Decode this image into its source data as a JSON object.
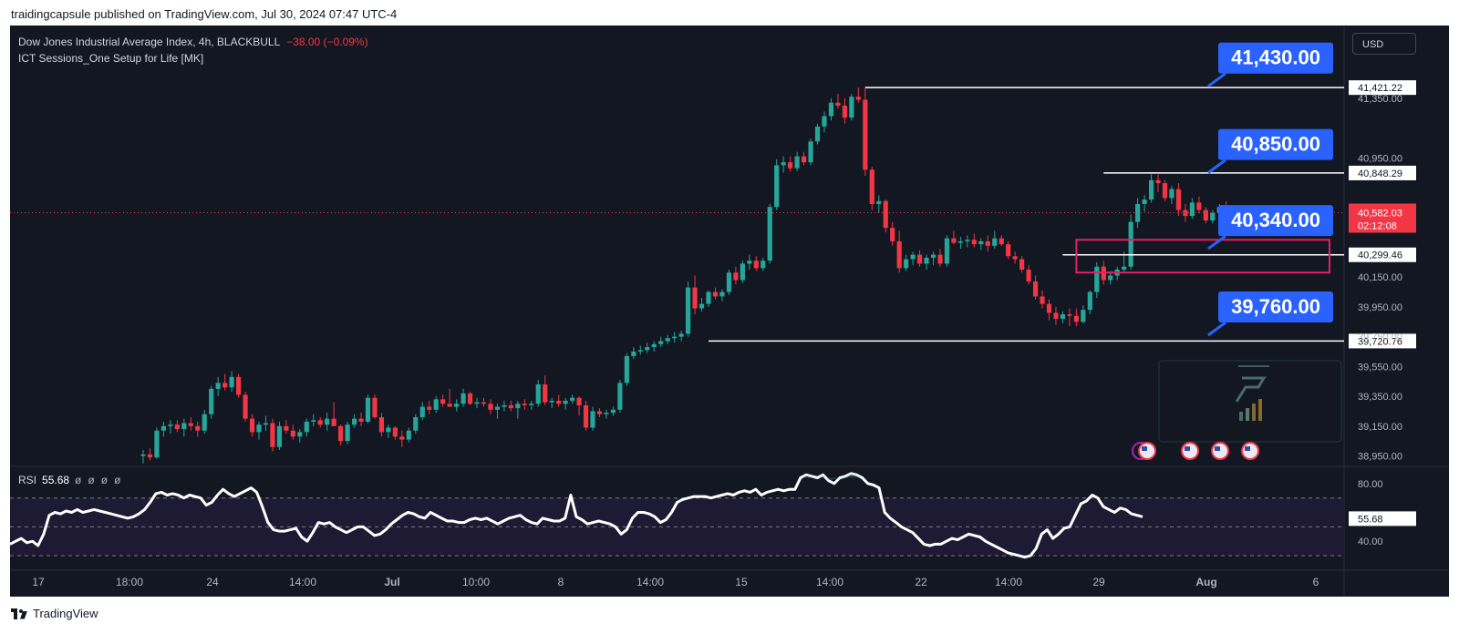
{
  "publisher": "traidingcapsule published on TradingView.com, Jul 30, 2024 07:47 UTC-4",
  "header": {
    "title": "Dow Jones Industrial Average Index, 4h, BLACKBULL",
    "change": "−38.00 (−0.09%)",
    "indicator": "ICT Sessions_One Setup for Life [MK]"
  },
  "currency_button": "USD",
  "rsi": {
    "label": "RSI",
    "value": "55.68",
    "placeholders": [
      "ø",
      "ø",
      "ø",
      "ø"
    ]
  },
  "footer_logo": "TradingView",
  "colors": {
    "up": "#26a69a",
    "down": "#f23645",
    "background": "#131722",
    "callout": "#2962ff",
    "zone": "#e91e63"
  },
  "chart_data": [
    {
      "type": "candlestick",
      "symbol": "Dow Jones Industrial Average Index",
      "timeframe": "4h",
      "x_ticks": [
        "17",
        "18:00",
        "24",
        "14:00",
        "Jul",
        "10:00",
        "8",
        "14:00",
        "15",
        "14:00",
        "22",
        "14:00",
        "29",
        "Aug",
        "6"
      ],
      "y_ticks": [
        "41,350.00",
        "40,950.00",
        "40,150.00",
        "39,950.00",
        "39,750.00",
        "39,550.00",
        "39,350.00",
        "39,150.00",
        "38,950.00"
      ],
      "ylim": [
        38880,
        41520
      ],
      "last_price": "40,582.03",
      "countdown": "02:12:08",
      "price_labels": [
        "41,421.22",
        "40,848.29",
        "40,299.46",
        "39,720.76"
      ],
      "levels": [
        {
          "label": "41,430.00",
          "price": 41430
        },
        {
          "label": "40,850.00",
          "price": 40850
        },
        {
          "label": "40,340.00",
          "price": 40340
        },
        {
          "label": "39,760.00",
          "price": 39760
        }
      ],
      "zone": {
        "top": 40400,
        "bottom": 40180
      },
      "candles": [
        [
          38950,
          38990,
          38900,
          38960
        ],
        [
          38960,
          39000,
          38920,
          38940
        ],
        [
          38940,
          39140,
          38930,
          39120
        ],
        [
          39120,
          39180,
          39080,
          39150
        ],
        [
          39150,
          39190,
          39100,
          39160
        ],
        [
          39160,
          39190,
          39110,
          39130
        ],
        [
          39130,
          39200,
          39080,
          39170
        ],
        [
          39170,
          39210,
          39120,
          39150
        ],
        [
          39150,
          39180,
          39080,
          39120
        ],
        [
          39120,
          39260,
          39100,
          39230
        ],
        [
          39230,
          39420,
          39200,
          39400
        ],
        [
          39400,
          39480,
          39350,
          39440
        ],
        [
          39440,
          39500,
          39390,
          39410
        ],
        [
          39410,
          39520,
          39380,
          39480
        ],
        [
          39480,
          39500,
          39340,
          39360
        ],
        [
          39360,
          39380,
          39180,
          39200
        ],
        [
          39200,
          39230,
          39080,
          39110
        ],
        [
          39110,
          39180,
          39060,
          39160
        ],
        [
          39160,
          39220,
          39120,
          39170
        ],
        [
          39170,
          39200,
          38980,
          39010
        ],
        [
          39010,
          39180,
          38990,
          39150
        ],
        [
          39150,
          39190,
          39100,
          39120
        ],
        [
          39120,
          39160,
          39060,
          39080
        ],
        [
          39080,
          39130,
          39040,
          39110
        ],
        [
          39110,
          39200,
          39080,
          39180
        ],
        [
          39180,
          39230,
          39150,
          39190
        ],
        [
          39190,
          39210,
          39140,
          39160
        ],
        [
          39160,
          39240,
          39120,
          39200
        ],
        [
          39200,
          39310,
          39150,
          39150
        ],
        [
          39150,
          39160,
          39020,
          39050
        ],
        [
          39050,
          39180,
          39030,
          39160
        ],
        [
          39160,
          39230,
          39140,
          39200
        ],
        [
          39200,
          39240,
          39150,
          39180
        ],
        [
          39180,
          39360,
          39170,
          39340
        ],
        [
          39340,
          39360,
          39200,
          39210
        ],
        [
          39210,
          39240,
          39080,
          39110
        ],
        [
          39110,
          39160,
          39070,
          39140
        ],
        [
          39140,
          39150,
          39060,
          39080
        ],
        [
          39080,
          39120,
          39010,
          39060
        ],
        [
          39060,
          39140,
          39040,
          39120
        ],
        [
          39120,
          39230,
          39100,
          39210
        ],
        [
          39210,
          39310,
          39190,
          39280
        ],
        [
          39280,
          39320,
          39230,
          39260
        ],
        [
          39260,
          39350,
          39240,
          39330
        ],
        [
          39330,
          39360,
          39280,
          39300
        ],
        [
          39300,
          39400,
          39280,
          39280
        ],
        [
          39280,
          39330,
          39250,
          39300
        ],
        [
          39300,
          39400,
          39280,
          39370
        ],
        [
          39370,
          39380,
          39290,
          39300
        ],
        [
          39300,
          39340,
          39270,
          39310
        ],
        [
          39310,
          39340,
          39280,
          39300
        ],
        [
          39300,
          39330,
          39230,
          39260
        ],
        [
          39260,
          39300,
          39200,
          39280
        ],
        [
          39280,
          39320,
          39250,
          39290
        ],
        [
          39290,
          39320,
          39250,
          39270
        ],
        [
          39270,
          39320,
          39200,
          39300
        ],
        [
          39300,
          39330,
          39260,
          39290
        ],
        [
          39290,
          39320,
          39260,
          39300
        ],
        [
          39300,
          39460,
          39280,
          39430
        ],
        [
          39430,
          39490,
          39290,
          39310
        ],
        [
          39310,
          39340,
          39270,
          39320
        ],
        [
          39320,
          39360,
          39280,
          39300
        ],
        [
          39300,
          39340,
          39260,
          39320
        ],
        [
          39320,
          39360,
          39300,
          39340
        ],
        [
          39340,
          39350,
          39220,
          39290
        ],
        [
          39290,
          39320,
          39120,
          39140
        ],
        [
          39140,
          39280,
          39120,
          39250
        ],
        [
          39250,
          39270,
          39210,
          39230
        ],
        [
          39230,
          39260,
          39200,
          39240
        ],
        [
          39240,
          39280,
          39220,
          39260
        ],
        [
          39260,
          39460,
          39240,
          39440
        ],
        [
          39440,
          39640,
          39420,
          39620
        ],
        [
          39620,
          39680,
          39600,
          39650
        ],
        [
          39650,
          39690,
          39630,
          39660
        ],
        [
          39660,
          39710,
          39640,
          39680
        ],
        [
          39680,
          39720,
          39650,
          39700
        ],
        [
          39700,
          39750,
          39680,
          39720
        ],
        [
          39720,
          39760,
          39700,
          39740
        ],
        [
          39740,
          39780,
          39710,
          39750
        ],
        [
          39750,
          39790,
          39720,
          39770
        ],
        [
          39770,
          40120,
          39750,
          40080
        ],
        [
          40080,
          40160,
          39900,
          39940
        ],
        [
          39940,
          40010,
          39920,
          39970
        ],
        [
          39970,
          40060,
          39950,
          40050
        ],
        [
          40050,
          40080,
          40000,
          40020
        ],
        [
          40020,
          40070,
          39990,
          40050
        ],
        [
          40050,
          40200,
          40030,
          40180
        ],
        [
          40180,
          40220,
          40100,
          40130
        ],
        [
          40130,
          40260,
          40110,
          40240
        ],
        [
          40240,
          40300,
          40200,
          40260
        ],
        [
          40260,
          40290,
          40190,
          40210
        ],
        [
          40210,
          40280,
          40190,
          40260
        ],
        [
          40260,
          40640,
          40240,
          40620
        ],
        [
          40620,
          40940,
          40600,
          40900
        ],
        [
          40900,
          40960,
          40850,
          40920
        ],
        [
          40920,
          40960,
          40860,
          40880
        ],
        [
          40880,
          40990,
          40860,
          40960
        ],
        [
          40960,
          40990,
          40900,
          40920
        ],
        [
          40920,
          41080,
          40900,
          41060
        ],
        [
          41060,
          41180,
          41040,
          41160
        ],
        [
          41160,
          41260,
          41120,
          41230
        ],
        [
          41230,
          41350,
          41200,
          41320
        ],
        [
          41320,
          41380,
          41280,
          41300
        ],
        [
          41300,
          41350,
          41180,
          41220
        ],
        [
          41220,
          41380,
          41200,
          41360
        ],
        [
          41360,
          41421,
          41320,
          41340
        ],
        [
          41340,
          41420,
          40830,
          40870
        ],
        [
          40870,
          40890,
          40600,
          40640
        ],
        [
          40640,
          40700,
          40580,
          40660
        ],
        [
          40660,
          40670,
          40450,
          40480
        ],
        [
          40480,
          40520,
          40360,
          40390
        ],
        [
          40390,
          40460,
          40180,
          40210
        ],
        [
          40210,
          40300,
          40190,
          40270
        ],
        [
          40270,
          40320,
          40230,
          40300
        ],
        [
          40300,
          40330,
          40220,
          40240
        ],
        [
          40240,
          40300,
          40200,
          40280
        ],
        [
          40280,
          40320,
          40230,
          40300
        ],
        [
          40300,
          40340,
          40220,
          40240
        ],
        [
          40240,
          40430,
          40220,
          40410
        ],
        [
          40410,
          40460,
          40370,
          40380
        ],
        [
          40380,
          40420,
          40340,
          40390
        ],
        [
          40390,
          40430,
          40350,
          40400
        ],
        [
          40400,
          40440,
          40350,
          40370
        ],
        [
          40370,
          40410,
          40330,
          40390
        ],
        [
          40390,
          40430,
          40320,
          40360
        ],
        [
          40360,
          40460,
          40340,
          40410
        ],
        [
          40410,
          40430,
          40360,
          40370
        ],
        [
          40370,
          40390,
          40270,
          40290
        ],
        [
          40290,
          40320,
          40240,
          40270
        ],
        [
          40270,
          40290,
          40180,
          40200
        ],
        [
          40200,
          40230,
          40100,
          40120
        ],
        [
          40120,
          40160,
          40000,
          40020
        ],
        [
          40020,
          40060,
          39940,
          39970
        ],
        [
          39970,
          40000,
          39860,
          39910
        ],
        [
          39910,
          39950,
          39830,
          39870
        ],
        [
          39870,
          39920,
          39840,
          39900
        ],
        [
          39900,
          39940,
          39820,
          39890
        ],
        [
          39890,
          39940,
          39820,
          39850
        ],
        [
          39850,
          39960,
          39840,
          39930
        ],
        [
          39930,
          40060,
          39900,
          40050
        ],
        [
          40050,
          40250,
          40010,
          40220
        ],
        [
          40220,
          40260,
          40100,
          40130
        ],
        [
          40130,
          40190,
          40100,
          40160
        ],
        [
          40160,
          40220,
          40130,
          40200
        ],
        [
          40200,
          40320,
          40180,
          40220
        ],
        [
          40220,
          40570,
          40200,
          40520
        ],
        [
          40520,
          40680,
          40480,
          40640
        ],
        [
          40640,
          40700,
          40590,
          40670
        ],
        [
          40670,
          40840,
          40650,
          40800
        ],
        [
          40800,
          40840,
          40720,
          40780
        ],
        [
          40780,
          40800,
          40660,
          40680
        ],
        [
          40680,
          40760,
          40640,
          40740
        ],
        [
          40740,
          40780,
          40560,
          40600
        ],
        [
          40600,
          40640,
          40520,
          40560
        ],
        [
          40560,
          40680,
          40540,
          40650
        ],
        [
          40650,
          40690,
          40580,
          40600
        ],
        [
          40600,
          40620,
          40510,
          40530
        ],
        [
          40530,
          40600,
          40510,
          40580
        ],
        [
          40580,
          40640,
          40560,
          40620
        ],
        [
          40620,
          40660,
          40570,
          40582
        ]
      ]
    },
    {
      "type": "line",
      "name": "RSI",
      "ylim": [
        25,
        90
      ],
      "y_ticks": [
        "80.00",
        "40.00"
      ],
      "bands": [
        30,
        50,
        70
      ],
      "last_value": "55.68",
      "values": [
        38,
        40,
        42,
        39,
        40,
        37,
        45,
        58,
        60,
        59,
        61,
        60,
        62,
        60,
        61,
        62,
        61,
        60,
        59,
        58,
        57,
        56,
        57,
        59,
        62,
        67,
        73,
        74,
        72,
        73,
        72,
        70,
        72,
        71,
        70,
        65,
        67,
        72,
        76,
        73,
        71,
        73,
        75,
        77,
        74,
        64,
        53,
        48,
        47,
        47,
        48,
        49,
        43,
        40,
        46,
        53,
        52,
        53,
        50,
        48,
        46,
        48,
        50,
        50,
        47,
        44,
        45,
        48,
        52,
        55,
        58,
        60,
        59,
        57,
        56,
        60,
        58,
        56,
        54,
        54,
        53,
        53,
        55,
        56,
        55,
        56,
        54,
        52,
        54,
        56,
        57,
        58,
        55,
        53,
        52,
        56,
        55,
        54,
        54,
        56,
        72,
        57,
        55,
        52,
        53,
        54,
        53,
        52,
        50,
        45,
        48,
        56,
        60,
        60,
        59,
        57,
        53,
        55,
        60,
        67,
        69,
        70,
        71,
        71,
        71,
        70,
        71,
        72,
        73,
        72,
        74,
        75,
        74,
        76,
        72,
        74,
        75,
        76,
        75,
        76,
        76,
        84,
        86,
        85,
        84,
        86,
        82,
        80,
        84,
        85,
        87,
        86,
        84,
        80,
        79,
        77,
        60,
        56,
        53,
        50,
        48,
        46,
        42,
        38,
        37,
        38,
        38,
        40,
        42,
        41,
        43,
        45,
        44,
        43,
        40,
        38,
        36,
        34,
        32,
        31,
        30,
        29,
        30,
        35,
        45,
        48,
        42,
        45,
        49,
        50,
        58,
        66,
        68,
        72,
        70,
        64,
        62,
        60,
        63,
        62,
        59,
        58,
        57
      ]
    }
  ]
}
